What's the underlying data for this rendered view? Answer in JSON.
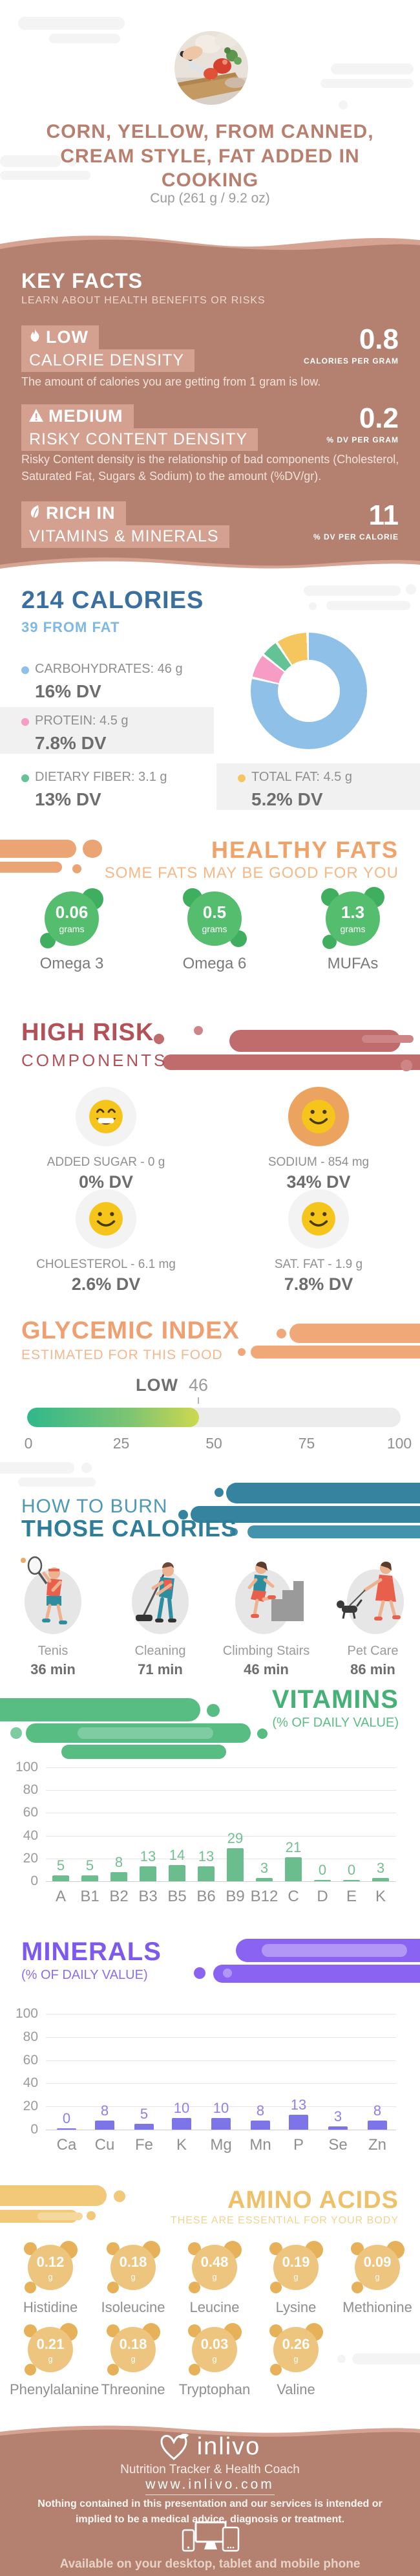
{
  "colors": {
    "theme_rose": "#b48170",
    "theme_rose_light": "#d6a392",
    "badge_bg": "#d4a190",
    "calories_blue": "#3a6f9f",
    "calories_lightblue": "#7fb8e3",
    "healthy_orange": "#f1a269",
    "risk_maroon": "#b25158",
    "glycemic_orange": "#f09f70",
    "burn_teal": "#2e7d99",
    "vitamins_green": "#45b176",
    "minerals_purple": "#7d59ee",
    "amino_gold": "#eec06a",
    "smiley_yellow": "#f6c51c",
    "sodium_highlight": "#eca35f"
  },
  "header": {
    "title": "CORN, YELLOW, FROM CANNED, CREAM STYLE, FAT ADDED IN COOKING",
    "serving": "Cup (261 g / 9.2 oz)"
  },
  "key_facts": {
    "title": "KEY FACTS",
    "subtitle": "LEARN ABOUT HEALTH BENEFITS OR RISKS",
    "items": [
      {
        "icon": "flame-icon",
        "level": "LOW",
        "name": "CALORIE DENSITY",
        "value": "0.8",
        "unit": "CALORIES PER GRAM",
        "description": "The amount of calories you are getting from 1 gram is low."
      },
      {
        "icon": "warning-icon",
        "level": "MEDIUM",
        "name": "RISKY CONTENT DENSITY",
        "value": "0.2",
        "unit": "% DV PER GRAM",
        "description": "Risky Content density is the relationship of bad components (Cholesterol, Saturated Fat, Sugars & Sodium) to the amount (%DV/gr)."
      },
      {
        "icon": "leaf-icon",
        "level": "RICH IN",
        "name": "VITAMINS & MINERALS",
        "value": "11",
        "unit": "% DV PER CALORIE",
        "description": ""
      }
    ]
  },
  "calories": {
    "title": "214 CALORIES",
    "subtitle": "39 FROM FAT",
    "legend": [
      {
        "label": "CARBOHYDRATES: 46 g",
        "dv": "16% DV",
        "color": "#8fc1e8"
      },
      {
        "label": "PROTEIN: 4.5 g",
        "dv": "7.8% DV",
        "color": "#f79cc5"
      },
      {
        "label": "DIETARY FIBER: 3.1 g",
        "dv": "13% DV",
        "color": "#63c395"
      },
      {
        "label": "TOTAL FAT: 4.5 g",
        "dv": "5.2% DV",
        "color": "#f6c65e"
      }
    ]
  },
  "chart_data": [
    {
      "type": "pie",
      "title": "Calorie composition donut",
      "labels": [
        "Carbohydrates",
        "Protein",
        "Dietary Fiber",
        "Total Fat"
      ],
      "values_percent": [
        79,
        7,
        5,
        9
      ],
      "colors": [
        "#8fc1e8",
        "#f79cc5",
        "#63c395",
        "#f6c65e"
      ],
      "legend_position": "left"
    },
    {
      "type": "bar",
      "title": "VITAMINS",
      "subtitle": "(% OF DAILY VALUE)",
      "categories": [
        "A",
        "B1",
        "B2",
        "B3",
        "B5",
        "B6",
        "B9",
        "B12",
        "C",
        "D",
        "E",
        "K"
      ],
      "values": [
        5,
        5,
        8,
        13,
        14,
        13,
        29,
        3,
        21,
        0,
        0,
        3
      ],
      "ylim": [
        0,
        100
      ],
      "yticks": [
        0,
        20,
        40,
        60,
        80,
        100
      ],
      "grid": true,
      "bar_color": "#6cbd8e",
      "value_label_color": "#74bf92"
    },
    {
      "type": "bar",
      "title": "MINERALS",
      "subtitle": "(% OF DAILY VALUE)",
      "categories": [
        "Ca",
        "Cu",
        "Fe",
        "K",
        "Mg",
        "Mn",
        "P",
        "Se",
        "Zn"
      ],
      "values": [
        0,
        8,
        5,
        10,
        10,
        8,
        13,
        3,
        8
      ],
      "ylim": [
        0,
        100
      ],
      "yticks": [
        0,
        20,
        40,
        60,
        80,
        100
      ],
      "grid": true,
      "bar_color": "#7d74e8",
      "value_label_color": "#8d80ec"
    },
    {
      "type": "gauge",
      "title": "GLYCEMIC INDEX",
      "label": "LOW",
      "value": 46,
      "range": [
        0,
        100
      ],
      "ticks": [
        0,
        25,
        50,
        75,
        100
      ]
    }
  ],
  "healthy_fats": {
    "title": "HEALTHY FATS",
    "subtitle": "SOME FATS MAY BE GOOD FOR YOU",
    "items": [
      {
        "value": "0.06",
        "unit": "grams",
        "label": "Omega 3"
      },
      {
        "value": "0.5",
        "unit": "grams",
        "label": "Omega 6"
      },
      {
        "value": "1.3",
        "unit": "grams",
        "label": "MUFAs"
      }
    ]
  },
  "high_risk": {
    "title": "HIGH RISK",
    "subtitle": "COMPONENTS",
    "items": [
      {
        "icon": "grin-smiley-icon",
        "label": "ADDED SUGAR - 0 g",
        "dv": "0% DV",
        "highlight": false
      },
      {
        "icon": "smile-smiley-icon",
        "label": "SODIUM - 854 mg",
        "dv": "34% DV",
        "highlight": true
      },
      {
        "icon": "smile-smiley-icon",
        "label": "CHOLESTEROL - 6.1 mg",
        "dv": "2.6% DV",
        "highlight": false
      },
      {
        "icon": "smile-smiley-icon",
        "label": "SAT. FAT - 1.9 g",
        "dv": "7.8% DV",
        "highlight": false
      }
    ]
  },
  "glycemic": {
    "title": "GLYCEMIC INDEX",
    "subtitle": "ESTIMATED FOR THIS FOOD",
    "level": "LOW",
    "value": "46",
    "ticks": [
      "0",
      "25",
      "50",
      "75",
      "100"
    ]
  },
  "burn": {
    "title_line1": "HOW TO BURN",
    "title_line2": "THOSE CALORIES",
    "activities": [
      {
        "icon": "tennis-icon",
        "name": "Tenis",
        "time": "36 min"
      },
      {
        "icon": "cleaning-icon",
        "name": "Cleaning",
        "time": "71 min"
      },
      {
        "icon": "climbing-stairs-icon",
        "name": "Climbing Stairs",
        "time": "46 min"
      },
      {
        "icon": "dog-walking-icon",
        "name": "Pet Care",
        "time": "86 min"
      }
    ]
  },
  "vitamins": {
    "title": "VITAMINS",
    "subtitle": "(% OF DAILY VALUE)"
  },
  "minerals": {
    "title": "MINERALS",
    "subtitle": "(% OF DAILY VALUE)"
  },
  "amino_acids": {
    "title": "AMINO ACIDS",
    "subtitle": "THESE ARE ESSENTIAL FOR YOUR BODY",
    "items": [
      {
        "value": "0.12",
        "unit": "g",
        "label": "Histidine"
      },
      {
        "value": "0.18",
        "unit": "g",
        "label": "Isoleucine"
      },
      {
        "value": "0.48",
        "unit": "g",
        "label": "Leucine"
      },
      {
        "value": "0.19",
        "unit": "g",
        "label": "Lysine"
      },
      {
        "value": "0.09",
        "unit": "g",
        "label": "Methionine"
      },
      {
        "value": "0.21",
        "unit": "g",
        "label": "Phenylalanine"
      },
      {
        "value": "0.18",
        "unit": "g",
        "label": "Threonine"
      },
      {
        "value": "0.03",
        "unit": "g",
        "label": "Tryptophan"
      },
      {
        "value": "0.26",
        "unit": "g",
        "label": "Valine"
      }
    ]
  },
  "footer": {
    "brand": "inlivo",
    "tagline": "Nutrition Tracker & Health Coach",
    "url": "www.inlivo.com",
    "disclaimer": "Nothing contained in this presentation and our services is intended or implied to be a medical advice, diagnosis or treatment.",
    "availability": "Available on your desktop, tablet and mobile phone"
  }
}
